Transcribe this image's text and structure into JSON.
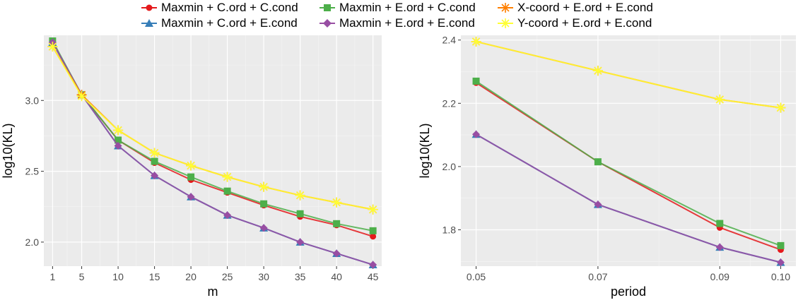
{
  "legend": {
    "items": [
      {
        "label": "Maxmin + C.ord + C.cond",
        "color": "#e41a1c",
        "marker": "circle"
      },
      {
        "label": "Maxmin + C.ord + E.cond",
        "color": "#377eb8",
        "marker": "triangle"
      },
      {
        "label": "Maxmin + E.ord + C.cond",
        "color": "#4daf4a",
        "marker": "square"
      },
      {
        "label": "Maxmin + E.ord + E.cond",
        "color": "#984ea3",
        "marker": "diamond"
      },
      {
        "label": "X-coord + E.ord + E.cond",
        "color": "#ff7f00",
        "marker": "asterisk"
      },
      {
        "label": "Y-coord + E.ord + E.cond",
        "color": "#ffff33",
        "marker": "asterisk"
      }
    ]
  },
  "chart_data": [
    {
      "type": "line",
      "xlabel": "m",
      "ylabel": "log10(KL)",
      "x": [
        1,
        5,
        10,
        15,
        20,
        25,
        30,
        35,
        40,
        45
      ],
      "xticks": [
        1,
        5,
        10,
        15,
        20,
        25,
        30,
        35,
        40,
        45
      ],
      "xlim": [
        -0.2,
        46.2
      ],
      "yticks": [
        2.0,
        2.5,
        3.0
      ],
      "ytick_labels": [
        "2.0",
        "2.5",
        "3.0"
      ],
      "ylim": [
        1.83,
        3.46
      ],
      "grid": true,
      "series": [
        {
          "name": "Maxmin + C.ord + C.cond",
          "values": [
            3.41,
            3.04,
            2.72,
            2.56,
            2.44,
            2.35,
            2.26,
            2.18,
            2.12,
            2.04
          ]
        },
        {
          "name": "Maxmin + C.ord + E.cond",
          "values": [
            3.41,
            3.04,
            2.68,
            2.47,
            2.32,
            2.19,
            2.1,
            2.0,
            1.92,
            1.84
          ]
        },
        {
          "name": "Maxmin + E.ord + C.cond",
          "values": [
            3.42,
            3.04,
            2.72,
            2.57,
            2.46,
            2.36,
            2.27,
            2.2,
            2.13,
            2.08
          ]
        },
        {
          "name": "Maxmin + E.ord + E.cond",
          "values": [
            3.41,
            3.04,
            2.68,
            2.47,
            2.32,
            2.19,
            2.1,
            2.0,
            1.92,
            1.84
          ]
        },
        {
          "name": "X-coord + E.ord + E.cond",
          "values": [
            3.38,
            3.04,
            2.79,
            2.63,
            2.54,
            2.46,
            2.39,
            2.33,
            2.28,
            2.23
          ]
        },
        {
          "name": "Y-coord + E.ord + E.cond",
          "values": [
            3.38,
            3.03,
            2.79,
            2.63,
            2.54,
            2.46,
            2.39,
            2.33,
            2.28,
            2.23
          ]
        }
      ]
    },
    {
      "type": "line",
      "xlabel": "period",
      "ylabel": "log10(KL)",
      "x": [
        0.05,
        0.07,
        0.09,
        0.1
      ],
      "xticks": [
        0.05,
        0.07,
        0.09,
        0.1
      ],
      "xtick_labels": [
        "0.05",
        "0.07",
        "0.09",
        "0.10"
      ],
      "xlim": [
        0.0475,
        0.1025
      ],
      "yticks": [
        1.8,
        2.0,
        2.2,
        2.4
      ],
      "ytick_labels": [
        "1.8",
        "2.0",
        "2.2",
        "2.4"
      ],
      "ylim": [
        1.685,
        2.415
      ],
      "grid": true,
      "series": [
        {
          "name": "Maxmin + C.ord + C.cond",
          "values": [
            2.265,
            2.015,
            1.807,
            1.737
          ]
        },
        {
          "name": "Maxmin + C.ord + E.cond",
          "values": [
            2.102,
            1.88,
            1.745,
            1.697
          ]
        },
        {
          "name": "Maxmin + E.ord + C.cond",
          "values": [
            2.27,
            2.015,
            1.82,
            1.75
          ]
        },
        {
          "name": "Maxmin + E.ord + E.cond",
          "values": [
            2.102,
            1.88,
            1.745,
            1.697
          ]
        },
        {
          "name": "X-coord + E.ord + E.cond",
          "values": [
            2.395,
            2.303,
            2.212,
            2.186
          ]
        },
        {
          "name": "Y-coord + E.ord + E.cond",
          "values": [
            2.395,
            2.303,
            2.212,
            2.186
          ]
        }
      ]
    }
  ]
}
